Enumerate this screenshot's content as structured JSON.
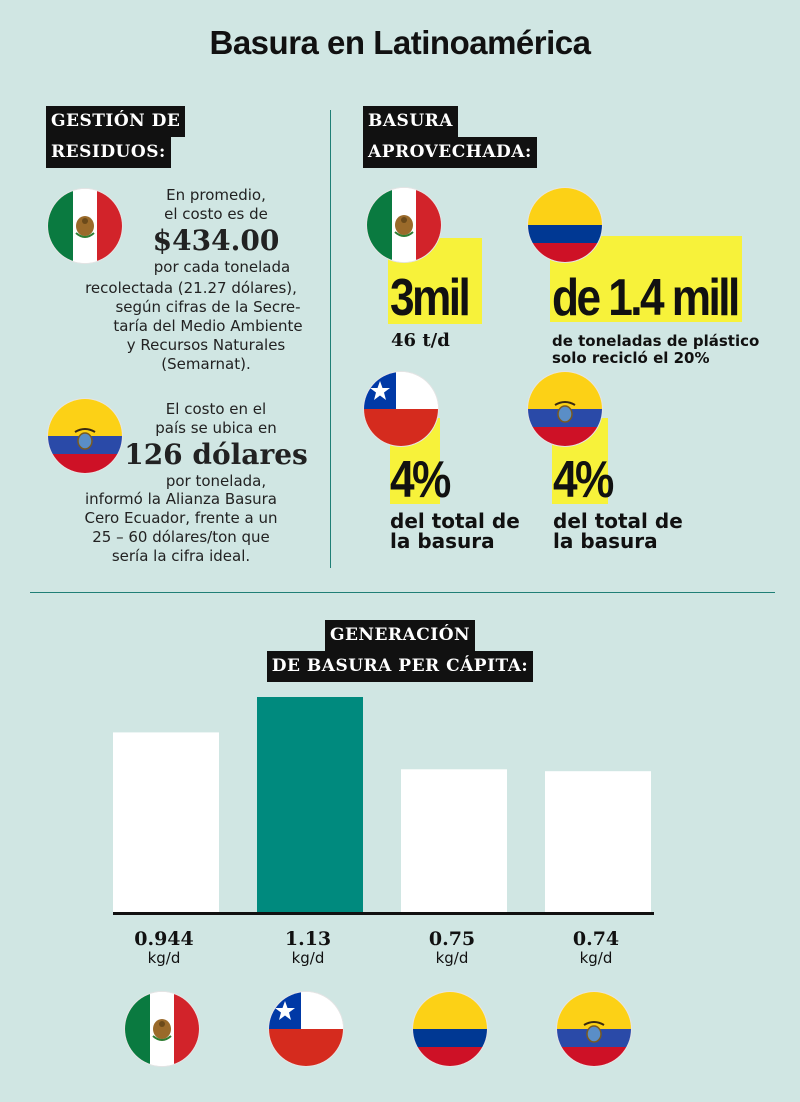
{
  "title": "Basura en Latinoamérica",
  "left": {
    "heading_line1": "GESTIÓN DE",
    "heading_line2": "RESIDUOS:",
    "mexico": {
      "flag": "mexico-flag",
      "line1": "En promedio,",
      "line2": "el costo es de",
      "amount": "$434.00",
      "line3": "por cada tonelada",
      "line4": "recolectada (21.27 dólares),",
      "line5": "según cifras de la Secre-",
      "line6": "taría del Medio Ambiente",
      "line7": "y Recursos Naturales",
      "line8": "(Semarnat)."
    },
    "ecuador": {
      "flag": "ecuador-flag",
      "line1": "El costo en el",
      "line2": "país se ubica en",
      "amount": "126 dólares",
      "line3": "por tonelada,",
      "line4": "informó la Alianza Basura",
      "line5": "Cero Ecuador, frente a un",
      "line6": "25 – 60 dólares/ton que",
      "line7": "sería la cifra ideal."
    }
  },
  "right": {
    "heading_line1": "BASURA",
    "heading_line2": "APROVECHADA:",
    "mexico": {
      "flag": "mexico-flag",
      "big": "3mil",
      "sub": "46 t/d"
    },
    "colombia": {
      "flag": "colombia-flag",
      "big": "de 1.4 mill",
      "sub1": "de toneladas de plástico",
      "sub2": "solo recicló el 20%"
    },
    "chile": {
      "flag": "chile-flag",
      "big": "4%",
      "sub1": "del total de",
      "sub2": "la basura"
    },
    "ecuador": {
      "flag": "ecuador-flag",
      "big": "4%",
      "sub1": "del total de",
      "sub2": "la basura"
    }
  },
  "chart_heading_line1": "GENERACIÓN",
  "chart_heading_line2": "DE BASURA PER CÁPITA:",
  "chart_data": {
    "type": "bar",
    "categories": [
      "México",
      "Chile",
      "Colombia",
      "Ecuador"
    ],
    "values": [
      0.944,
      1.13,
      0.75,
      0.74
    ],
    "value_labels": [
      "0.944",
      "1.13",
      "0.75",
      "0.74"
    ],
    "unit": "kg/d",
    "flags": [
      "mexico-flag",
      "chile-flag",
      "colombia-flag",
      "ecuador-flag"
    ],
    "highlight_index": 1,
    "bar_color": "#ffffff",
    "highlight_color": "#008a7e",
    "ylim": [
      0,
      1.2
    ],
    "grid": false
  },
  "colors": {
    "background": "#d0e6e3",
    "accent": "#008a7e",
    "highlight": "#f7f23a"
  }
}
